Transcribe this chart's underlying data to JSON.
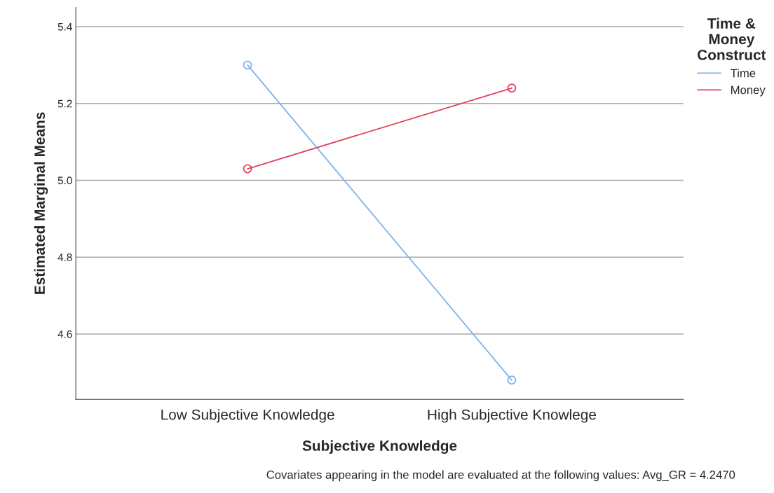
{
  "chart_data": {
    "type": "line",
    "xlabel": "Subjective Knowledge",
    "ylabel": "Estimated Marginal Means",
    "legend_title": "Time &\nMoney\nConstruct",
    "categories": [
      "Low Subjective Knowledge",
      "High Subjective Knowlege"
    ],
    "series": [
      {
        "name": "Time",
        "color": "#7fb2ec",
        "values": [
          5.3,
          4.48
        ]
      },
      {
        "name": "Money",
        "color": "#e0405a",
        "values": [
          5.03,
          5.24
        ]
      }
    ],
    "ylim": [
      4.43,
      5.45
    ],
    "yticks": [
      4.6,
      4.8,
      {
        "value": 5.0,
        "label": "5.0"
      },
      5.2,
      5.4
    ],
    "grid": "y",
    "legend": "right",
    "marker": "circle",
    "line_style": "solid",
    "annotations": [
      "Covariates appearing in the model are evaluated at the following values: Avg_GR = 4.2470"
    ]
  }
}
